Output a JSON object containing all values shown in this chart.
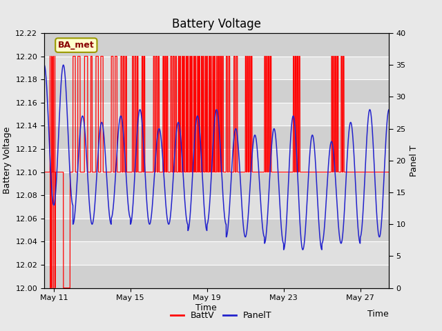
{
  "title": "Battery Voltage",
  "xlabel": "Time",
  "ylabel_left": "Battery Voltage",
  "ylabel_right": "Panel T",
  "ylim_left": [
    12.0,
    12.22
  ],
  "ylim_right": [
    0,
    40
  ],
  "yticks_left": [
    12.0,
    12.02,
    12.04,
    12.06,
    12.08,
    12.1,
    12.12,
    12.14,
    12.16,
    12.18,
    12.2,
    12.22
  ],
  "yticks_right": [
    0,
    5,
    10,
    15,
    20,
    25,
    30,
    35,
    40
  ],
  "bg_color": "#e8e8e8",
  "plot_bg_color": "#e0e0e0",
  "grid_color": "#ffffff",
  "band_colors": [
    "#d0d0d0",
    "#e0e0e0"
  ],
  "annotation_box_text": "BA_met",
  "annotation_box_facecolor": "#ffffcc",
  "annotation_box_edgecolor": "#999900",
  "annotation_text_color": "#880000",
  "red_line_color": "#ff0000",
  "blue_line_color": "#2222cc",
  "legend_labels": [
    "BattV",
    "PanelT"
  ],
  "x_tick_positions": [
    1,
    5,
    9,
    13,
    17
  ],
  "x_tick_labels": [
    "May 11",
    "May 15",
    "May 19",
    "May 23",
    "May 27"
  ],
  "xlim": [
    0.5,
    18.5
  ]
}
